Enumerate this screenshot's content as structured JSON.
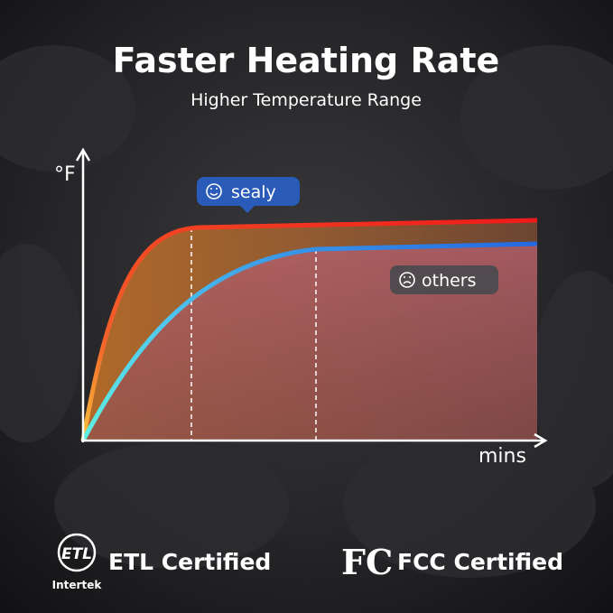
{
  "header": {
    "title": "Faster Heating Rate",
    "subtitle": "Higher Temperature Range"
  },
  "graph": {
    "y_axis_label": "°F",
    "x_axis_label": "mins",
    "labels": [
      "sealy",
      "others"
    ]
  },
  "certifications": [
    {
      "logo_text": "ETL",
      "logo_caption": "Intertek",
      "label": "ETL Certified"
    },
    {
      "logo_text": "FC",
      "label": "FCC Certified"
    }
  ]
}
